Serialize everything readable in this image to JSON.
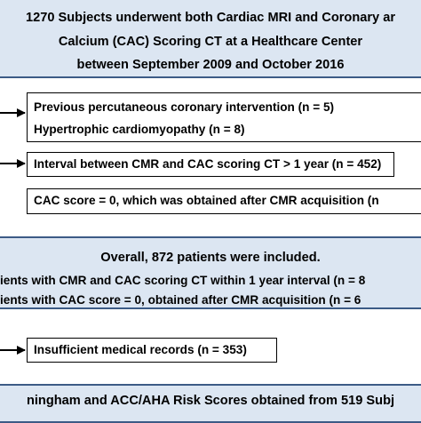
{
  "top_box": {
    "lines": [
      "1270 Subjects underwent both Cardiac MRI and Coronary ar",
      "Calcium (CAC) Scoring CT at a Healthcare Center",
      "between September 2009 and October 2016"
    ]
  },
  "exclusion_1": {
    "lines": [
      "Previous percutaneous coronary intervention (n = 5)",
      "Hypertrophic cardiomyopathy (n = 8)"
    ]
  },
  "exclusion_2": {
    "text": "Interval between CMR and CAC scoring CT > 1 year (n = 452)"
  },
  "exclusion_3": {
    "text": "CAC score = 0, which was obtained after CMR acquisition (n"
  },
  "middle_box": {
    "title": "Overall, 872 patients were included.",
    "lines": [
      "ients with CMR and CAC scoring CT within 1 year interval (n = 8",
      "ients with CAC score = 0, obtained after CMR acquisition (n = 6"
    ]
  },
  "exclusion_4": {
    "text": "Insufficient medical records (n = 353)"
  },
  "bottom_box": {
    "text": "ningham and ACC/AHA Risk Scores obtained from 519 Subj"
  },
  "colors": {
    "box_fill": "#dce6f2",
    "box_border": "#3c5b86",
    "arrow": "#000000"
  }
}
